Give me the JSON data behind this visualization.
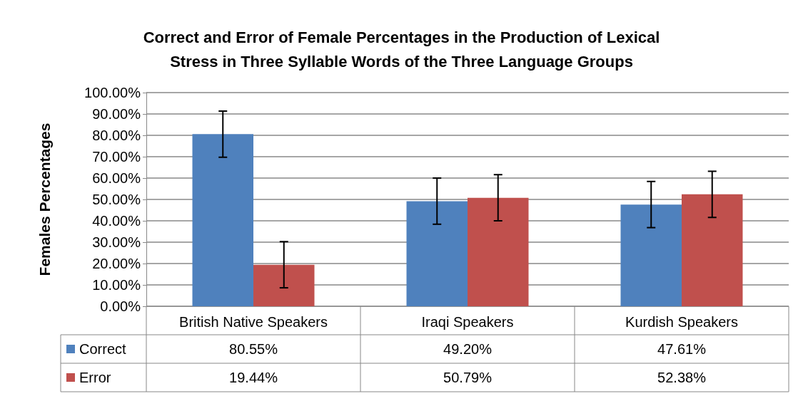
{
  "chart_data": {
    "type": "bar",
    "title": "Correct and Error of Female Percentages in the Production of Lexical\nStress in Three Syllable Words of the Three Language Groups",
    "ylabel": "Females Percentages",
    "categories": [
      "British Native Speakers",
      "Iraqi Speakers",
      "Kurdish Speakers"
    ],
    "series": [
      {
        "name": "Correct",
        "color": "#4f81bd",
        "values": [
          80.55,
          49.2,
          47.61
        ],
        "value_labels": [
          "80.55%",
          "49.20%",
          "47.61%"
        ],
        "errors": [
          10.8,
          10.8,
          10.8
        ]
      },
      {
        "name": "Error",
        "color": "#c0504d",
        "values": [
          19.44,
          50.79,
          52.38
        ],
        "value_labels": [
          "19.44%",
          "50.79%",
          "52.38%"
        ],
        "errors": [
          10.8,
          10.8,
          10.8
        ]
      }
    ],
    "ylim": [
      0,
      100
    ],
    "yticks": [
      {
        "value": 0,
        "label": "0.00%"
      },
      {
        "value": 10,
        "label": "10.00%"
      },
      {
        "value": 20,
        "label": "20.00%"
      },
      {
        "value": 30,
        "label": "30.00%"
      },
      {
        "value": 40,
        "label": "40.00%"
      },
      {
        "value": 50,
        "label": "50.00%"
      },
      {
        "value": 60,
        "label": "60.00%"
      },
      {
        "value": 70,
        "label": "70.00%"
      },
      {
        "value": 80,
        "label": "80.00%"
      },
      {
        "value": 90,
        "label": "90.00%"
      },
      {
        "value": 100,
        "label": "100.00%"
      }
    ],
    "grid": "y",
    "legend": "bottom left"
  }
}
